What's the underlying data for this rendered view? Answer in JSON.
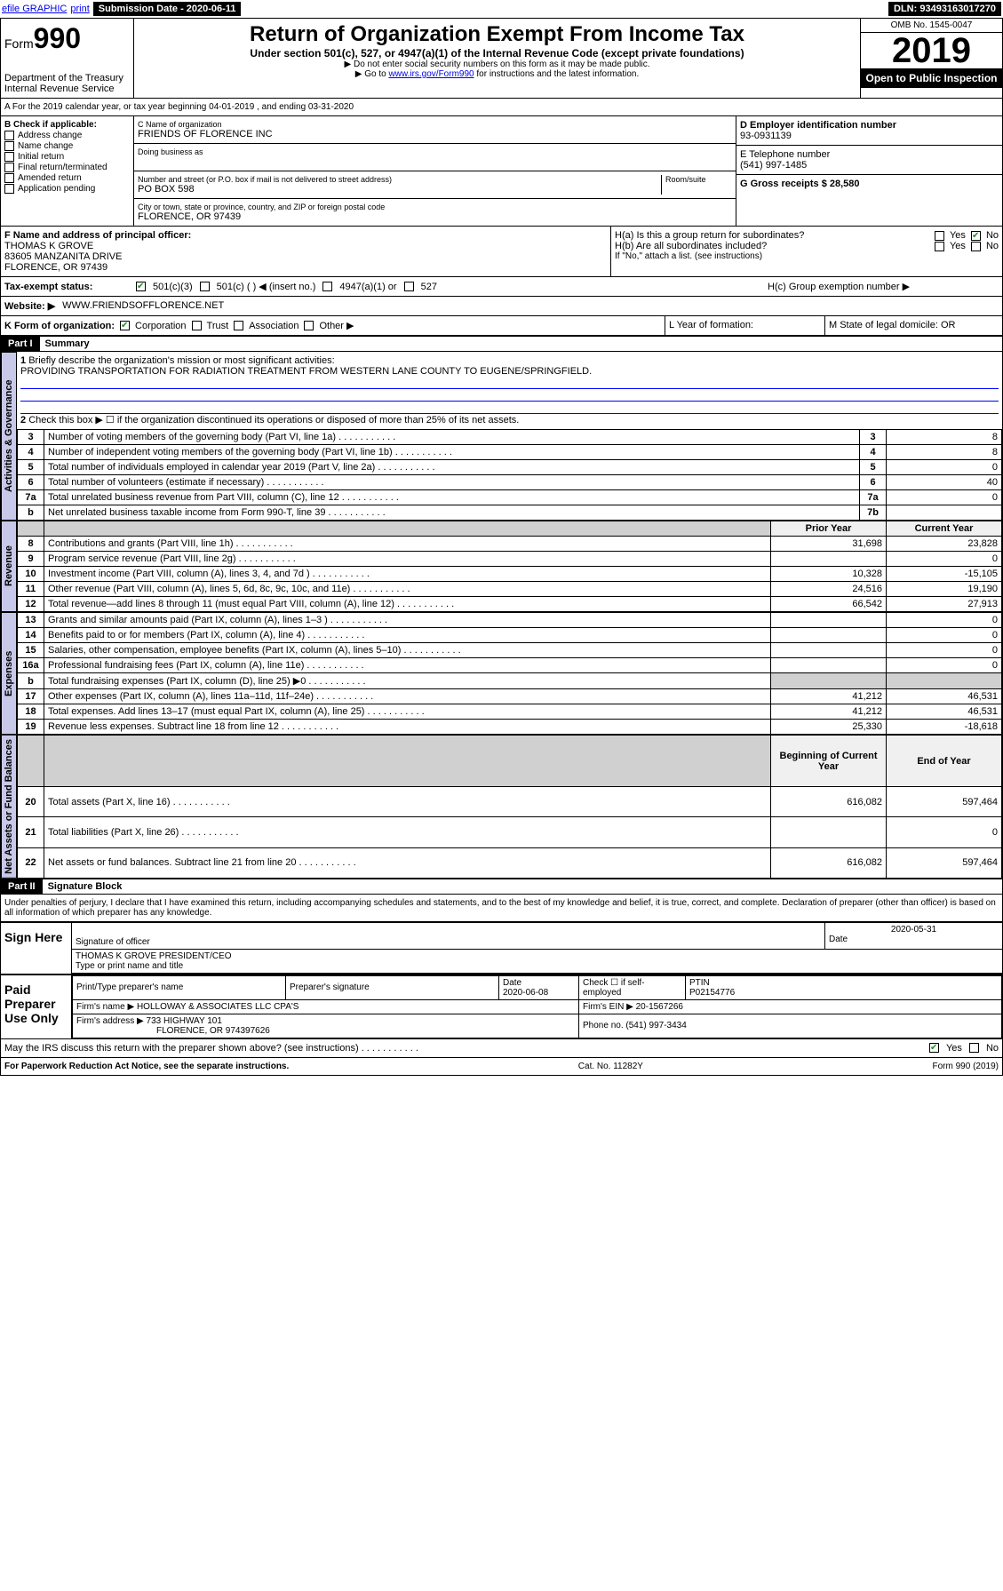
{
  "topbar": {
    "efile": "efile GRAPHIC",
    "print": "print",
    "submission_label": "Submission Date - 2020-06-11",
    "dln_label": "DLN: 93493163017270"
  },
  "header": {
    "form_prefix": "Form",
    "form_number": "990",
    "dept": "Department of the Treasury",
    "irs": "Internal Revenue Service",
    "title": "Return of Organization Exempt From Income Tax",
    "subtitle": "Under section 501(c), 527, or 4947(a)(1) of the Internal Revenue Code (except private foundations)",
    "note1": "▶ Do not enter social security numbers on this form as it may be made public.",
    "note2_prefix": "▶ Go to ",
    "note2_link": "www.irs.gov/Form990",
    "note2_suffix": " for instructions and the latest information.",
    "omb": "OMB No. 1545-0047",
    "year": "2019",
    "open": "Open to Public Inspection"
  },
  "section_a": "A For the 2019 calendar year, or tax year beginning 04-01-2019    , and ending 03-31-2020",
  "section_b": {
    "label": "B Check if applicable:",
    "items": [
      "Address change",
      "Name change",
      "Initial return",
      "Final return/terminated",
      "Amended return",
      "Application pending"
    ]
  },
  "section_c": {
    "name_label": "C Name of organization",
    "name": "FRIENDS OF FLORENCE INC",
    "dba_label": "Doing business as",
    "addr_label": "Number and street (or P.O. box if mail is not delivered to street address)",
    "room_label": "Room/suite",
    "addr": "PO BOX 598",
    "city_label": "City or town, state or province, country, and ZIP or foreign postal code",
    "city": "FLORENCE, OR  97439"
  },
  "section_d": {
    "label": "D Employer identification number",
    "ein": "93-0931139",
    "e_label": "E Telephone number",
    "phone": "(541) 997-1485",
    "g_label": "G Gross receipts $ 28,580"
  },
  "section_f": {
    "label": "F Name and address of principal officer:",
    "name": "THOMAS K GROVE",
    "addr1": "83605 MANZANITA DRIVE",
    "addr2": "FLORENCE, OR  97439"
  },
  "section_h": {
    "ha": "H(a)  Is this a group return for subordinates?",
    "hb": "H(b)  Are all subordinates included?",
    "hb_note": "If \"No,\" attach a list. (see instructions)",
    "hc": "H(c)  Group exemption number ▶",
    "yes": "Yes",
    "no": "No"
  },
  "section_i": {
    "label": "Tax-exempt status:",
    "opts": [
      "501(c)(3)",
      "501(c) (  ) ◀ (insert no.)",
      "4947(a)(1) or",
      "527"
    ]
  },
  "section_j": {
    "label": "Website: ▶",
    "value": "WWW.FRIENDSOFFLORENCE.NET"
  },
  "section_k": {
    "label": "K Form of organization:",
    "opts": [
      "Corporation",
      "Trust",
      "Association",
      "Other ▶"
    ]
  },
  "section_l": {
    "label": "L Year of formation:"
  },
  "section_m": {
    "label": "M State of legal domicile: OR"
  },
  "part1": {
    "header": "Part I",
    "title": "Summary",
    "line1_label": "Briefly describe the organization's mission or most significant activities:",
    "line1_text": "PROVIDING TRANSPORTATION FOR RADIATION TREATMENT FROM WESTERN LANE COUNTY TO EUGENE/SPRINGFIELD.",
    "line2": "Check this box ▶ ☐  if the organization discontinued its operations or disposed of more than 25% of its net assets.",
    "gov_label": "Activities & Governance",
    "rev_label": "Revenue",
    "exp_label": "Expenses",
    "net_label": "Net Assets or Fund Balances",
    "prior_hdr": "Prior Year",
    "current_hdr": "Current Year",
    "begin_hdr": "Beginning of Current Year",
    "end_hdr": "End of Year",
    "rows_gov": [
      {
        "n": "3",
        "t": "Number of voting members of the governing body (Part VI, line 1a)",
        "c": "3",
        "v": "8"
      },
      {
        "n": "4",
        "t": "Number of independent voting members of the governing body (Part VI, line 1b)",
        "c": "4",
        "v": "8"
      },
      {
        "n": "5",
        "t": "Total number of individuals employed in calendar year 2019 (Part V, line 2a)",
        "c": "5",
        "v": "0"
      },
      {
        "n": "6",
        "t": "Total number of volunteers (estimate if necessary)",
        "c": "6",
        "v": "40"
      },
      {
        "n": "7a",
        "t": "Total unrelated business revenue from Part VIII, column (C), line 12",
        "c": "7a",
        "v": "0"
      },
      {
        "n": "b",
        "t": "Net unrelated business taxable income from Form 990-T, line 39",
        "c": "7b",
        "v": ""
      }
    ],
    "rows_rev": [
      {
        "n": "8",
        "t": "Contributions and grants (Part VIII, line 1h)",
        "p": "31,698",
        "c": "23,828"
      },
      {
        "n": "9",
        "t": "Program service revenue (Part VIII, line 2g)",
        "p": "",
        "c": "0"
      },
      {
        "n": "10",
        "t": "Investment income (Part VIII, column (A), lines 3, 4, and 7d )",
        "p": "10,328",
        "c": "-15,105"
      },
      {
        "n": "11",
        "t": "Other revenue (Part VIII, column (A), lines 5, 6d, 8c, 9c, 10c, and 11e)",
        "p": "24,516",
        "c": "19,190"
      },
      {
        "n": "12",
        "t": "Total revenue—add lines 8 through 11 (must equal Part VIII, column (A), line 12)",
        "p": "66,542",
        "c": "27,913"
      }
    ],
    "rows_exp": [
      {
        "n": "13",
        "t": "Grants and similar amounts paid (Part IX, column (A), lines 1–3 )",
        "p": "",
        "c": "0"
      },
      {
        "n": "14",
        "t": "Benefits paid to or for members (Part IX, column (A), line 4)",
        "p": "",
        "c": "0"
      },
      {
        "n": "15",
        "t": "Salaries, other compensation, employee benefits (Part IX, column (A), lines 5–10)",
        "p": "",
        "c": "0"
      },
      {
        "n": "16a",
        "t": "Professional fundraising fees (Part IX, column (A), line 11e)",
        "p": "",
        "c": "0"
      },
      {
        "n": "b",
        "t": "Total fundraising expenses (Part IX, column (D), line 25) ▶0",
        "p": "shade",
        "c": "shade"
      },
      {
        "n": "17",
        "t": "Other expenses (Part IX, column (A), lines 11a–11d, 11f–24e)",
        "p": "41,212",
        "c": "46,531"
      },
      {
        "n": "18",
        "t": "Total expenses. Add lines 13–17 (must equal Part IX, column (A), line 25)",
        "p": "41,212",
        "c": "46,531"
      },
      {
        "n": "19",
        "t": "Revenue less expenses. Subtract line 18 from line 12",
        "p": "25,330",
        "c": "-18,618"
      }
    ],
    "rows_net": [
      {
        "n": "20",
        "t": "Total assets (Part X, line 16)",
        "p": "616,082",
        "c": "597,464"
      },
      {
        "n": "21",
        "t": "Total liabilities (Part X, line 26)",
        "p": "",
        "c": "0"
      },
      {
        "n": "22",
        "t": "Net assets or fund balances. Subtract line 21 from line 20",
        "p": "616,082",
        "c": "597,464"
      }
    ]
  },
  "part2": {
    "header": "Part II",
    "title": "Signature Block",
    "declaration": "Under penalties of perjury, I declare that I have examined this return, including accompanying schedules and statements, and to the best of my knowledge and belief, it is true, correct, and complete. Declaration of preparer (other than officer) is based on all information of which preparer has any knowledge.",
    "sign_here": "Sign Here",
    "sig_officer": "Signature of officer",
    "sig_date": "2020-05-31",
    "date_label": "Date",
    "officer_name": "THOMAS K GROVE PRESIDENT/CEO",
    "type_name": "Type or print name and title",
    "paid_prep": "Paid Preparer Use Only",
    "prep_name_label": "Print/Type preparer's name",
    "prep_sig_label": "Preparer's signature",
    "prep_date_label": "Date",
    "prep_date": "2020-06-08",
    "check_if": "Check ☐ if self-employed",
    "ptin_label": "PTIN",
    "ptin": "P02154776",
    "firm_name_label": "Firm's name    ▶",
    "firm_name": "HOLLOWAY & ASSOCIATES LLC CPA'S",
    "firm_ein_label": "Firm's EIN ▶",
    "firm_ein": "20-1567266",
    "firm_addr_label": "Firm's address ▶",
    "firm_addr1": "733 HIGHWAY 101",
    "firm_addr2": "FLORENCE, OR  974397626",
    "phone_label": "Phone no.",
    "phone": "(541) 997-3434",
    "discuss": "May the IRS discuss this return with the preparer shown above? (see instructions)",
    "yes": "Yes",
    "no": "No"
  },
  "footer": {
    "paperwork": "For Paperwork Reduction Act Notice, see the separate instructions.",
    "cat": "Cat. No. 11282Y",
    "form": "Form 990 (2019)"
  }
}
